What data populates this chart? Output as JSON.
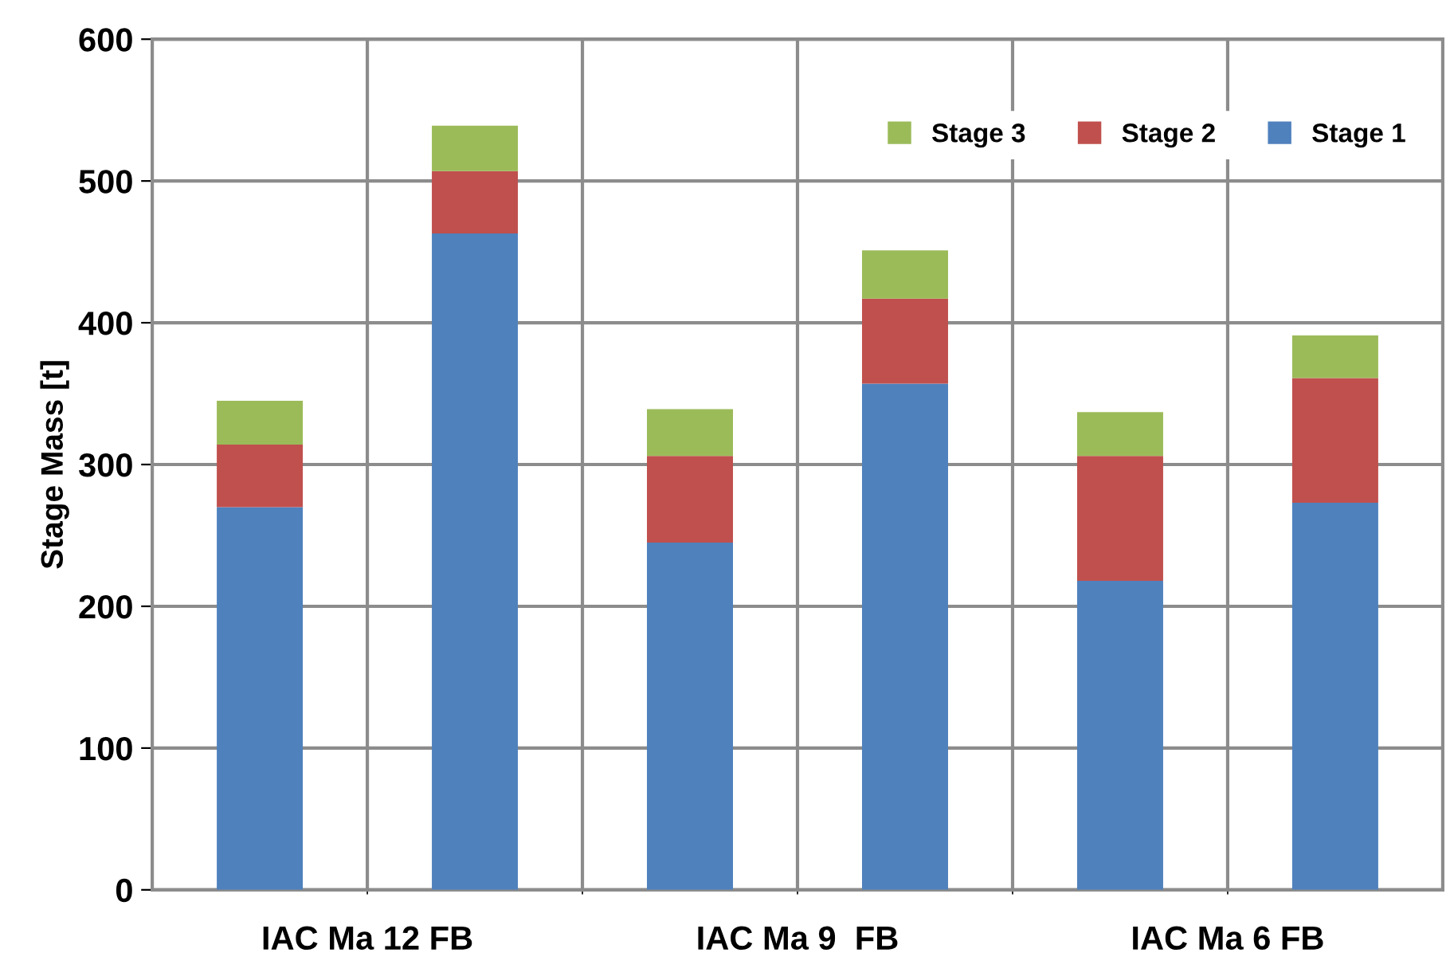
{
  "chart_data": {
    "type": "bar",
    "stacked": true,
    "ylabel": "Stage Mass [t]",
    "categories": [
      null,
      null,
      null,
      null,
      null,
      null
    ],
    "series": [
      {
        "name": "Stage 1",
        "color": "#4f81bd",
        "values": [
          270,
          463,
          245,
          357,
          218,
          273
        ]
      },
      {
        "name": "Stage 2",
        "color": "#c0504d",
        "values": [
          44,
          44,
          61,
          60,
          88,
          88
        ]
      },
      {
        "name": "Stage 3",
        "color": "#9bbb59",
        "values": [
          31,
          32,
          33,
          34,
          31,
          30
        ]
      }
    ],
    "ylim": [
      0,
      600
    ],
    "yticks": [
      0,
      100,
      200,
      300,
      400,
      500,
      600
    ],
    "grid": true,
    "legend": "top right",
    "annotations": [
      "IAC Ma 12 FB",
      "IAC Ma 9  FB",
      "IAC Ma 6 FB"
    ]
  }
}
